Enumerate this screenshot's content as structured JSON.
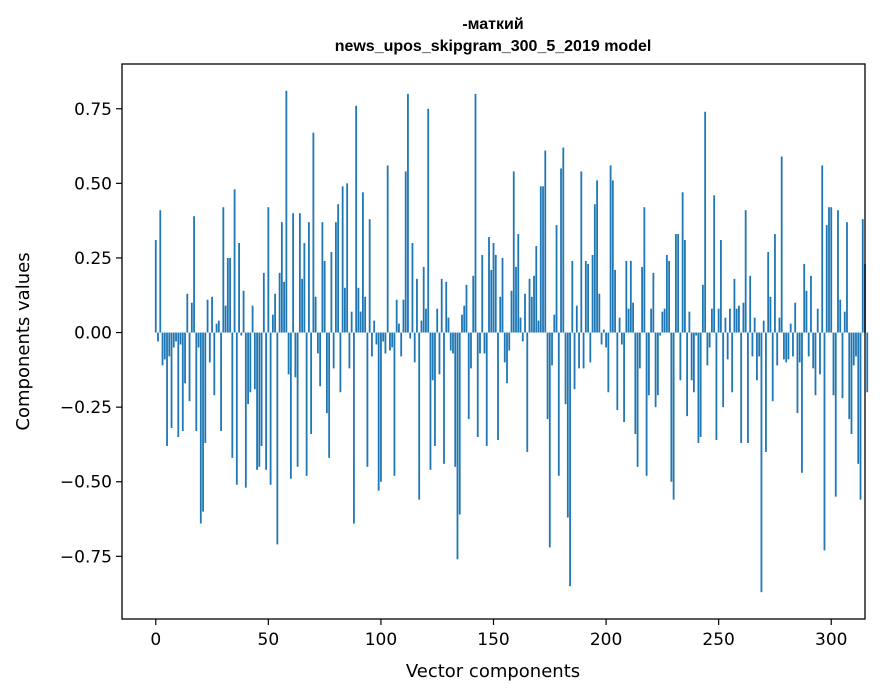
{
  "chart_data": {
    "type": "bar",
    "title_lines": [
      "-маткий",
      "news_upos_skipgram_300_5_2019 model"
    ],
    "xlabel": "Vector components",
    "ylabel": "Components values",
    "xlim": [
      -15,
      315
    ],
    "ylim": [
      -0.96,
      0.9
    ],
    "x_ticks": [
      0,
      50,
      100,
      150,
      200,
      250,
      300
    ],
    "x_tick_labels": [
      "0",
      "50",
      "100",
      "150",
      "200",
      "250",
      "300"
    ],
    "y_ticks": [
      0.75,
      0.5,
      0.25,
      0.0,
      -0.25,
      -0.5,
      -0.75
    ],
    "y_tick_labels": [
      "0.75",
      "0.50",
      "0.25",
      "0.00",
      "−0.25",
      "−0.50",
      "−0.75"
    ],
    "bar_color": "#1f77b4",
    "grid": false,
    "values": [
      0.31,
      -0.03,
      0.41,
      -0.11,
      -0.09,
      -0.38,
      -0.08,
      -0.32,
      -0.05,
      -0.03,
      -0.35,
      -0.04,
      -0.33,
      -0.17,
      0.13,
      -0.23,
      0.1,
      0.39,
      -0.33,
      -0.05,
      -0.64,
      -0.6,
      -0.37,
      0.11,
      -0.1,
      0.12,
      -0.21,
      0.03,
      0.04,
      -0.33,
      0.42,
      0.09,
      0.25,
      0.25,
      -0.42,
      0.48,
      -0.51,
      0.3,
      -0.01,
      0.14,
      -0.52,
      -0.24,
      -0.2,
      0.09,
      -0.19,
      -0.46,
      -0.45,
      -0.38,
      0.2,
      -0.46,
      0.42,
      -0.51,
      0.06,
      0.13,
      -0.71,
      0.2,
      0.37,
      0.17,
      0.81,
      -0.14,
      -0.49,
      0.4,
      -0.15,
      -0.45,
      0.4,
      0.18,
      0.3,
      -0.48,
      0.37,
      -0.34,
      0.67,
      0.12,
      -0.07,
      -0.18,
      0.37,
      0.24,
      -0.27,
      -0.42,
      0.27,
      -0.12,
      0.37,
      0.43,
      -0.2,
      0.49,
      0.15,
      0.5,
      -0.12,
      0.07,
      -0.64,
      0.76,
      0.15,
      0.07,
      0.47,
      0.12,
      -0.45,
      0.38,
      -0.08,
      0.04,
      -0.04,
      -0.53,
      -0.5,
      -0.03,
      -0.07,
      0.56,
      -0.06,
      -0.05,
      -0.48,
      0.11,
      0.03,
      -0.08,
      0.11,
      0.54,
      0.8,
      -0.02,
      0.3,
      -0.1,
      0.18,
      -0.56,
      0.04,
      0.22,
      0.08,
      0.75,
      -0.46,
      -0.16,
      -0.38,
      0.08,
      -0.14,
      0.18,
      -0.44,
      0.17,
      0.05,
      -0.06,
      -0.07,
      -0.45,
      -0.76,
      -0.61,
      0.06,
      0.09,
      0.16,
      -0.29,
      -0.12,
      0.19,
      0.8,
      -0.35,
      -0.07,
      0.26,
      -0.07,
      -0.38,
      0.32,
      0.21,
      0.3,
      0.26,
      -0.36,
      0.12,
      0.25,
      -0.1,
      -0.17,
      -0.06,
      0.14,
      0.54,
      0.22,
      0.33,
      0.05,
      -0.03,
      0.13,
      -0.4,
      0.18,
      0.12,
      0.19,
      0.29,
      0.04,
      0.49,
      0.49,
      0.61,
      -0.29,
      -0.72,
      -0.11,
      0.06,
      0.36,
      -0.48,
      0.55,
      0.62,
      -0.24,
      -0.62,
      -0.85,
      0.24,
      -0.19,
      0.09,
      -0.12,
      0.54,
      -0.12,
      0.24,
      0.23,
      -0.1,
      0.26,
      0.43,
      0.51,
      0.13,
      -0.04,
      0.01,
      -0.05,
      -0.2,
      0.56,
      0.51,
      0.21,
      -0.26,
      0.05,
      -0.04,
      -0.3,
      0.24,
      0.08,
      0.24,
      0.1,
      -0.34,
      -0.45,
      -0.12,
      0.22,
      0.42,
      -0.48,
      -0.21,
      0.08,
      0.2,
      -0.25,
      -0.21,
      -0.01,
      0.07,
      0.08,
      0.26,
      0.24,
      -0.5,
      -0.56,
      0.33,
      0.33,
      -0.16,
      0.47,
      0.31,
      -0.28,
      0.07,
      -0.16,
      -0.2,
      -0.01,
      -0.37,
      -0.35,
      0.16,
      0.74,
      -0.11,
      -0.05,
      0.08,
      0.46,
      -0.36,
      0.08,
      0.31,
      -0.25,
      0.05,
      -0.09,
      0.08,
      -0.2,
      0.18,
      0.08,
      0.09,
      -0.37,
      0.1,
      0.41,
      -0.37,
      0.19,
      -0.08,
      0.05,
      -0.16,
      -0.08,
      -0.87,
      0.04,
      -0.4,
      0.27,
      0.12,
      -0.23,
      0.33,
      -0.11,
      0.05,
      0.59,
      -0.09,
      -0.1,
      -0.09,
      0.03,
      -0.08,
      0.1,
      -0.27,
      -0.1,
      -0.47,
      0.23,
      0.14,
      -0.08,
      0.19,
      -0.12,
      -0.21,
      0.08,
      -0.14,
      0.56,
      -0.73,
      0.36,
      0.42,
      0.42,
      -0.21,
      -0.55,
      0.41,
      0.11,
      -0.22,
      0.07,
      0.37,
      -0.29,
      -0.34,
      -0.11,
      -0.08,
      -0.44,
      -0.56,
      0.38,
      0.23,
      -0.2
    ]
  }
}
